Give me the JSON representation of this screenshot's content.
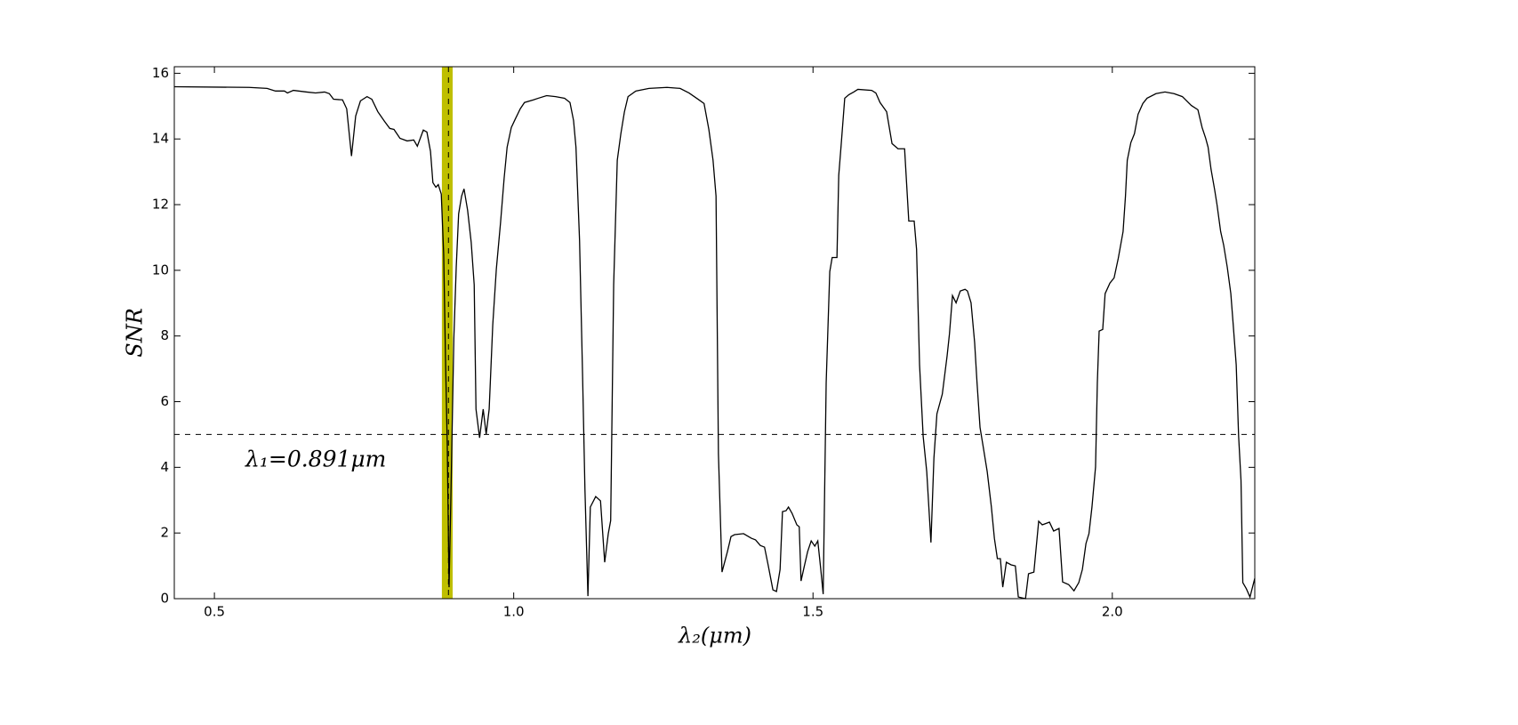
{
  "chart_data": {
    "type": "line",
    "xlabel": "λ₂(μm)",
    "ylabel": "SNR",
    "annotation": "λ₁=0.891μm",
    "color": "#000000",
    "band_color": "#bfbf00",
    "threshold": 5,
    "marker": 0.891,
    "band": [
      0.88,
      0.898
    ],
    "xlim": [
      0.433,
      2.238
    ],
    "ylim": [
      0,
      16.2
    ],
    "xticks": [
      0.5,
      {
        "value": 1,
        "label": "1.0"
      },
      1.5,
      {
        "value": 2,
        "label": "2.0"
      }
    ],
    "yticks": [
      0,
      2,
      4,
      6,
      8,
      10,
      12,
      14,
      16
    ],
    "x": [
      0.433,
      0.558,
      0.588,
      0.602,
      0.617,
      0.622,
      0.632,
      0.654,
      0.669,
      0.684,
      0.692,
      0.699,
      0.714,
      0.721,
      0.729,
      0.736,
      0.744,
      0.755,
      0.763,
      0.773,
      0.784,
      0.793,
      0.8,
      0.81,
      0.822,
      0.833,
      0.839,
      0.849,
      0.855,
      0.861,
      0.865,
      0.87,
      0.874,
      0.879,
      0.883,
      0.886,
      0.889,
      0.892,
      0.895,
      0.9,
      0.904,
      0.908,
      0.913,
      0.917,
      0.923,
      0.929,
      0.934,
      0.937,
      0.943,
      0.949,
      0.954,
      0.959,
      0.965,
      0.971,
      0.978,
      0.984,
      0.989,
      0.996,
      1.003,
      1.011,
      1.018,
      1.033,
      1.041,
      1.055,
      1.07,
      1.085,
      1.094,
      1.1,
      1.104,
      1.11,
      1.115,
      1.119,
      1.124,
      1.128,
      1.137,
      1.145,
      1.152,
      1.158,
      1.162,
      1.167,
      1.173,
      1.179,
      1.185,
      1.191,
      1.204,
      1.226,
      1.256,
      1.278,
      1.293,
      1.308,
      1.318,
      1.326,
      1.333,
      1.338,
      1.342,
      1.348,
      1.357,
      1.363,
      1.369,
      1.384,
      1.397,
      1.404,
      1.412,
      1.419,
      1.425,
      1.433,
      1.439,
      1.445,
      1.449,
      1.455,
      1.459,
      1.465,
      1.473,
      1.477,
      1.48,
      1.485,
      1.491,
      1.497,
      1.503,
      1.508,
      1.513,
      1.517,
      1.522,
      1.528,
      1.532,
      1.54,
      1.543,
      1.547,
      1.553,
      1.56,
      1.568,
      1.575,
      1.598,
      1.605,
      1.612,
      1.623,
      1.632,
      1.642,
      1.653,
      1.66,
      1.669,
      1.673,
      1.678,
      1.684,
      1.69,
      1.697,
      1.702,
      1.707,
      1.716,
      1.724,
      1.728,
      1.733,
      1.739,
      1.746,
      1.754,
      1.758,
      1.764,
      1.77,
      1.774,
      1.779,
      1.785,
      1.791,
      1.798,
      1.803,
      1.808,
      1.813,
      1.817,
      1.823,
      1.831,
      1.838,
      1.843,
      1.855,
      1.86,
      1.869,
      1.877,
      1.883,
      1.895,
      1.902,
      1.911,
      1.917,
      1.927,
      1.936,
      1.944,
      1.95,
      1.956,
      1.961,
      1.966,
      1.972,
      1.975,
      1.978,
      1.984,
      1.988,
      1.996,
      2.003,
      2.01,
      2.018,
      2.022,
      2.025,
      2.031,
      2.037,
      2.043,
      2.051,
      2.058,
      2.073,
      2.088,
      2.103,
      2.117,
      2.132,
      2.143,
      2.15,
      2.156,
      2.16,
      2.165,
      2.171,
      2.175,
      2.181,
      2.186,
      2.192,
      2.198,
      2.202,
      2.207,
      2.211,
      2.215,
      2.218,
      2.224,
      2.23,
      2.238
    ],
    "values": [
      15.59,
      15.57,
      15.54,
      15.46,
      15.46,
      15.4,
      15.48,
      15.43,
      15.4,
      15.43,
      15.38,
      15.21,
      15.19,
      14.92,
      13.48,
      14.7,
      15.16,
      15.29,
      15.21,
      14.83,
      14.54,
      14.32,
      14.29,
      14.02,
      13.94,
      13.97,
      13.78,
      14.27,
      14.21,
      13.62,
      12.67,
      12.53,
      12.61,
      12.32,
      10.5,
      7.39,
      4.68,
      0.35,
      3.06,
      7.93,
      10.1,
      11.72,
      12.26,
      12.48,
      11.83,
      10.85,
      9.56,
      5.77,
      4.9,
      5.77,
      5.01,
      5.77,
      8.34,
      10.04,
      11.45,
      12.8,
      13.75,
      14.35,
      14.62,
      14.92,
      15.11,
      15.19,
      15.24,
      15.32,
      15.29,
      15.24,
      15.11,
      14.56,
      13.75,
      10.91,
      6.85,
      3.33,
      0.08,
      2.79,
      3.11,
      2.98,
      1.11,
      1.98,
      2.38,
      9.56,
      13.35,
      14.16,
      14.83,
      15.29,
      15.46,
      15.54,
      15.57,
      15.54,
      15.4,
      15.21,
      15.08,
      14.29,
      13.35,
      12.26,
      4.41,
      0.81,
      1.43,
      1.89,
      1.95,
      1.98,
      1.84,
      1.79,
      1.62,
      1.57,
      1.03,
      0.27,
      0.22,
      0.89,
      2.65,
      2.68,
      2.79,
      2.6,
      2.25,
      2.19,
      0.54,
      0.95,
      1.43,
      1.76,
      1.6,
      1.76,
      0.89,
      0.14,
      6.58,
      9.96,
      10.39,
      10.39,
      12.89,
      13.81,
      15.24,
      15.35,
      15.43,
      15.51,
      15.48,
      15.4,
      15.11,
      14.83,
      13.86,
      13.7,
      13.7,
      11.5,
      11.5,
      10.64,
      7.12,
      4.95,
      3.87,
      1.71,
      4.28,
      5.63,
      6.23,
      7.39,
      8.07,
      9.23,
      9.01,
      9.37,
      9.42,
      9.37,
      9.01,
      7.8,
      6.58,
      5.22,
      4.55,
      3.87,
      2.79,
      1.84,
      1.22,
      1.22,
      0.35,
      1.11,
      1.03,
      1.0,
      0.05,
      0,
      0.76,
      0.81,
      2.36,
      2.25,
      2.33,
      2.06,
      2.14,
      0.51,
      0.43,
      0.24,
      0.49,
      0.89,
      1.68,
      1.98,
      2.79,
      4.01,
      6.58,
      8.15,
      8.2,
      9.29,
      9.61,
      9.77,
      10.37,
      11.18,
      12.26,
      13.35,
      13.89,
      14.16,
      14.75,
      15.08,
      15.24,
      15.38,
      15.43,
      15.38,
      15.29,
      15.02,
      14.89,
      14.35,
      14.02,
      13.75,
      13.07,
      12.45,
      11.99,
      11.18,
      10.77,
      10.1,
      9.29,
      8.34,
      7.12,
      4.95,
      3.6,
      0.49,
      0.3,
      0.05,
      0.62
    ]
  }
}
